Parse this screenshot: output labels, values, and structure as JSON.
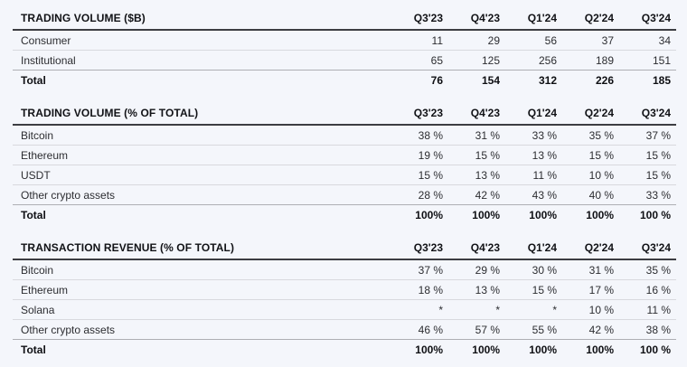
{
  "report": {
    "background": "#f4f6fb",
    "header_line_color": "#3c3d42",
    "row_line_color": "#d8d9de",
    "total_line_color": "#aeafb4",
    "quarters": [
      "Q3'23",
      "Q4'23",
      "Q1'24",
      "Q2'24",
      "Q3'24"
    ],
    "tables": [
      {
        "id": "trading-volume",
        "title": "TRADING VOLUME ($B)",
        "rows": [
          {
            "label": "Consumer",
            "values": [
              "11",
              "29",
              "56",
              "37",
              "34"
            ],
            "emphasis": false
          },
          {
            "label": "Institutional",
            "values": [
              "65",
              "125",
              "256",
              "189",
              "151"
            ],
            "emphasis": false
          },
          {
            "label": "Total",
            "values": [
              "76",
              "154",
              "312",
              "226",
              "185"
            ],
            "emphasis": true
          }
        ]
      },
      {
        "id": "trading-volume-pct",
        "title": "TRADING VOLUME (% OF TOTAL)",
        "rows": [
          {
            "label": "Bitcoin",
            "values": [
              "38 %",
              "31 %",
              "33 %",
              "35 %",
              "37 %"
            ],
            "emphasis": false
          },
          {
            "label": "Ethereum",
            "values": [
              "19 %",
              "15 %",
              "13 %",
              "15 %",
              "15 %"
            ],
            "emphasis": false
          },
          {
            "label": "USDT",
            "values": [
              "15 %",
              "13 %",
              "11 %",
              "10 %",
              "15 %"
            ],
            "emphasis": false
          },
          {
            "label": "Other crypto assets",
            "values": [
              "28 %",
              "42 %",
              "43 %",
              "40 %",
              "33 %"
            ],
            "emphasis": false
          },
          {
            "label": "Total",
            "values": [
              "100%",
              "100%",
              "100%",
              "100%",
              "100 %"
            ],
            "emphasis": true
          }
        ]
      },
      {
        "id": "transaction-revenue-pct",
        "title": "TRANSACTION REVENUE (% OF TOTAL)",
        "rows": [
          {
            "label": "Bitcoin",
            "values": [
              "37 %",
              "29 %",
              "30 %",
              "31 %",
              "35 %"
            ],
            "emphasis": false
          },
          {
            "label": "Ethereum",
            "values": [
              "18 %",
              "13 %",
              "15 %",
              "17 %",
              "16 %"
            ],
            "emphasis": false
          },
          {
            "label": "Solana",
            "values": [
              "*",
              "*",
              "*",
              "10 %",
              "11 %"
            ],
            "emphasis": false
          },
          {
            "label": "Other crypto assets",
            "values": [
              "46 %",
              "57 %",
              "55 %",
              "42 %",
              "38 %"
            ],
            "emphasis": false
          },
          {
            "label": "Total",
            "values": [
              "100%",
              "100%",
              "100%",
              "100%",
              "100 %"
            ],
            "emphasis": true
          }
        ]
      }
    ]
  }
}
